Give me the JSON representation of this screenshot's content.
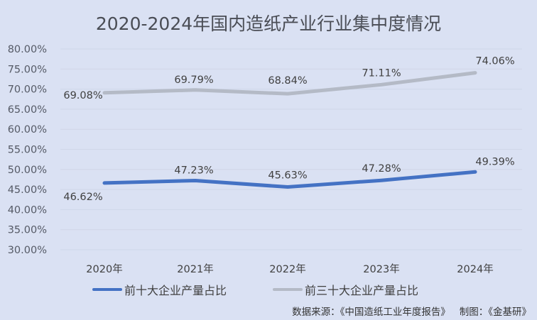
{
  "title": "2020-2024年国内造纸产业行业集中度情况",
  "legend": {
    "series0": "前十大企业产量占比",
    "series1": "前三十大企业产量占比"
  },
  "source": "数据来源：《中国造纸工业年度报告》   制图：《金基研》",
  "colors": {
    "background": "#dae1f3",
    "series0": "#4472c4",
    "series1": "#b4bac6",
    "grid": "#cfd6e8"
  },
  "chart_data": {
    "type": "line",
    "title": "2020-2024年国内造纸产业行业集中度情况",
    "categories": [
      "2020年",
      "2021年",
      "2022年",
      "2023年",
      "2024年"
    ],
    "series": [
      {
        "name": "前十大企业产量占比",
        "values": [
          46.62,
          47.23,
          45.63,
          47.28,
          49.39
        ],
        "labels": [
          "46.62%",
          "47.23%",
          "45.63%",
          "47.28%",
          "49.39%"
        ],
        "color": "#4472c4"
      },
      {
        "name": "前三十大企业产量占比",
        "values": [
          69.08,
          69.79,
          68.84,
          71.11,
          74.06
        ],
        "labels": [
          "69.08%",
          "69.79%",
          "68.84%",
          "71.11%",
          "74.06%"
        ],
        "color": "#b4bac6"
      }
    ],
    "yticks": [
      "80.00%",
      "75.00%",
      "70.00%",
      "65.00%",
      "60.00%",
      "55.00%",
      "50.00%",
      "45.00%",
      "40.00%",
      "35.00%",
      "30.00%"
    ],
    "xlabel": "",
    "ylabel": "",
    "ylim": [
      30,
      80
    ],
    "grid": true,
    "legend_position": "bottom"
  }
}
